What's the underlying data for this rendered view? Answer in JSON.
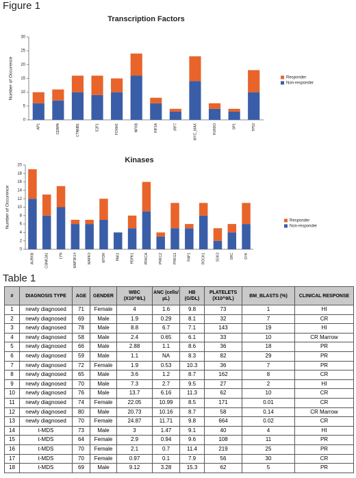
{
  "figure_label": "Figure 1",
  "chart_data": [
    {
      "type": "bar",
      "stacked": true,
      "title": "Transcription Factors",
      "ylabel": "Number of Occurence",
      "categories": [
        "AP1",
        "CEBPA",
        "CTNNB1",
        "E2F1",
        "FOXM1",
        "NFKB",
        "HIF1A",
        "IRF7",
        "MYC_MAX",
        "RUNX3",
        "SP1",
        "TP53"
      ],
      "series": [
        {
          "name": "Non-responder",
          "color": "#3a5da8",
          "values": [
            6,
            7,
            10,
            9,
            10,
            16,
            6,
            3,
            14,
            4,
            3,
            10
          ]
        },
        {
          "name": "Responder",
          "color": "#e8642a",
          "values": [
            4,
            4,
            6,
            7,
            5,
            8,
            2,
            1,
            9,
            2,
            1,
            8
          ]
        }
      ],
      "ylim": [
        0,
        30
      ],
      "yticks": [
        0,
        5,
        10,
        15,
        20,
        25,
        30
      ],
      "grid": false,
      "legend": "right"
    },
    {
      "type": "bar",
      "stacked": true,
      "title": "Kinases",
      "ylabel": "Number of Occurence",
      "categories": [
        "AURKB",
        "CSNK2A1",
        "LYN",
        "MAP3K14",
        "MAPK3",
        "MTOR",
        "PAK1",
        "PDPK1",
        "PRKCA",
        "PRKCZ",
        "PRKG1",
        "RAF1",
        "ROCK1",
        "SGK3",
        "SRC",
        "SYK"
      ],
      "series": [
        {
          "name": "Non-responder",
          "color": "#3a5da8",
          "values": [
            12,
            8,
            10,
            6,
            6,
            7,
            4,
            5,
            9,
            3,
            5,
            5,
            8,
            2,
            4,
            6
          ]
        },
        {
          "name": "Responder",
          "color": "#e8642a",
          "values": [
            7,
            5,
            5,
            1,
            1,
            5,
            0,
            3,
            7,
            1,
            6,
            1,
            3,
            3,
            2,
            5
          ]
        }
      ],
      "ylim": [
        0,
        20
      ],
      "yticks": [
        0,
        2,
        4,
        6,
        8,
        10,
        12,
        14,
        16,
        18,
        20
      ],
      "grid": false,
      "legend": "right"
    }
  ],
  "table_label": "Table 1",
  "table": {
    "header": [
      "#",
      "DIAGNOSIS TYPE",
      "AGE",
      "GENDER",
      "WBC (X10^9/L)",
      "ANC (cells/µL)",
      "HB (G/DL)",
      "PLATELETS (X10^9/L)",
      "BM_BLASTS (%)",
      "CLINICAL RESPONSE"
    ],
    "rows": [
      [
        "1",
        "newly diagnosed",
        "71",
        "Female",
        "4",
        "1.6",
        "9.8",
        "73",
        "1",
        "HI"
      ],
      [
        "2",
        "newly diagnosed",
        "69",
        "Male",
        "1.9",
        "0.29",
        "8.1",
        "32",
        "7",
        "CR"
      ],
      [
        "3",
        "newly diagnosed",
        "78",
        "Male",
        "8.8",
        "6.7",
        "7.1",
        "143",
        "19",
        "HI"
      ],
      [
        "4",
        "newly diagnosed",
        "58",
        "Male",
        "2.4",
        "0.65",
        "6.1",
        "33",
        "10",
        "CR Marrow"
      ],
      [
        "5",
        "newly diagnosed",
        "66",
        "Male",
        "2.88",
        "1.1",
        "8.6",
        "36",
        "18",
        "PR"
      ],
      [
        "6",
        "newly diagnosed",
        "59",
        "Male",
        "1.1",
        "NA",
        "8.3",
        "82",
        "29",
        "PR"
      ],
      [
        "7",
        "newly diagnosed",
        "72",
        "Female",
        "1.9",
        "0.53",
        "10.3",
        "36",
        "7",
        "PR"
      ],
      [
        "8",
        "newly diagnosed",
        "65",
        "Male",
        "3.6",
        "1.2",
        "8.7",
        "162",
        "8",
        "CR"
      ],
      [
        "9",
        "newly diagnosed",
        "70",
        "Male",
        "7.3",
        "2.7",
        "9.5",
        "27",
        "2",
        "HI"
      ],
      [
        "10",
        "newly diagnosed",
        "76",
        "Male",
        "13.7",
        "6.16",
        "11.3",
        "62",
        "10",
        "CR"
      ],
      [
        "11",
        "newly diagnosed",
        "74",
        "Female",
        "22.05",
        "10.99",
        "8.5",
        "171",
        "0.01",
        "CR"
      ],
      [
        "12",
        "newly diagnosed",
        "80",
        "Male",
        "20.73",
        "10.16",
        "8.7",
        "58",
        "0.14",
        "CR Marrow"
      ],
      [
        "13",
        "newly diagnosed",
        "70",
        "Female",
        "24.87",
        "11.71",
        "9.8",
        "664",
        "0.02",
        "CR"
      ],
      [
        "14",
        "t-MDS",
        "73",
        "Male",
        "3",
        "1.47",
        "9.1",
        "40",
        "4",
        "HI"
      ],
      [
        "15",
        "t-MDS",
        "64",
        "Female",
        "2.9",
        "0.94",
        "9.6",
        "108",
        "11",
        "PR"
      ],
      [
        "16",
        "t-MDS",
        "70",
        "Female",
        "2.1",
        "0.7",
        "11.4",
        "219",
        "25",
        "PR"
      ],
      [
        "17",
        "t-MDS",
        "70",
        "Female",
        "0.97",
        "0.1",
        "7.9",
        "56",
        "30",
        "CR"
      ],
      [
        "18",
        "t-MDS",
        "69",
        "Male",
        "9.12",
        "3.28",
        "15.3",
        "62",
        "5",
        "PR"
      ]
    ]
  }
}
